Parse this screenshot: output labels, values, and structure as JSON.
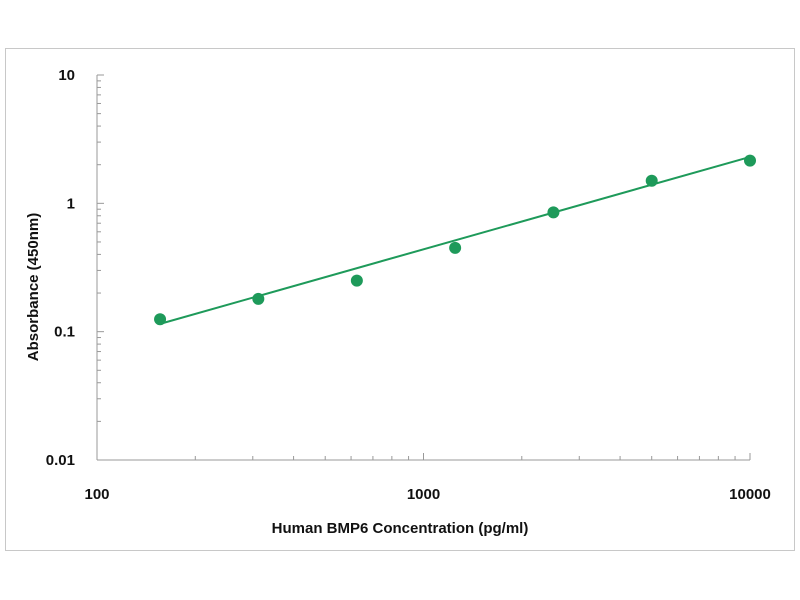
{
  "chart_data": {
    "type": "scatter",
    "title": "",
    "xlabel": "Human BMP6 Concentration (pg/ml)",
    "ylabel": "Absorbance (450nm)",
    "xscale": "log",
    "yscale": "log",
    "xlim": [
      100,
      10000
    ],
    "ylim": [
      0.01,
      10
    ],
    "x_ticks": [
      {
        "value": 100,
        "label": "100"
      },
      {
        "value": 1000,
        "label": "1000"
      },
      {
        "value": 10000,
        "label": "10000"
      }
    ],
    "y_ticks": [
      {
        "value": 10,
        "label": "10"
      },
      {
        "value": 1,
        "label": "1"
      },
      {
        "value": 0.1,
        "label": "0.1"
      },
      {
        "value": 0.01,
        "label": "0.01"
      }
    ],
    "grid": false,
    "legend": "none",
    "series": [
      {
        "points": [
          {
            "x": 156,
            "y": 0.125
          },
          {
            "x": 312,
            "y": 0.18
          },
          {
            "x": 625,
            "y": 0.25
          },
          {
            "x": 1250,
            "y": 0.45
          },
          {
            "x": 2500,
            "y": 0.85
          },
          {
            "x": 5000,
            "y": 1.5
          },
          {
            "x": 10000,
            "y": 2.15
          }
        ],
        "color": "#1e9a5a"
      }
    ],
    "fit_line": {
      "from": {
        "x": 156,
        "y": 0.115
      },
      "to": {
        "x": 10000,
        "y": 2.3
      },
      "color": "#1e9a5a"
    },
    "axis_color": "#999999"
  }
}
